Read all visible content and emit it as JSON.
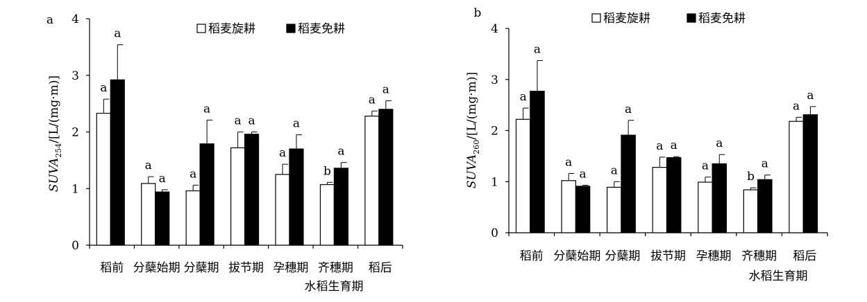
{
  "legend": {
    "white": "稻麦旋耕",
    "black": "稻麦免耕"
  },
  "chart_data": [
    {
      "type": "bar",
      "panel_label": "a",
      "ylabel_main": "SUVA",
      "ylabel_sub": "254",
      "ylabel_unit": "/[L/(mg·m)]",
      "xlabel": "水稻生育期",
      "categories": [
        "稻前",
        "分蘖始期",
        "分蘖期",
        "拔节期",
        "孕穗期",
        "齐穗期",
        "稻后"
      ],
      "ylim": [
        0,
        4
      ],
      "yticks": [
        "0",
        "1",
        "2",
        "3",
        "4"
      ],
      "legend_position": "top-right",
      "series": [
        {
          "name": "稻麦旋耕",
          "values": [
            2.33,
            1.09,
            0.96,
            1.72,
            1.25,
            1.07,
            2.28
          ],
          "errors": [
            0.25,
            0.12,
            0.1,
            0.28,
            0.18,
            0.04,
            0.09
          ],
          "letters": [
            "a",
            "a",
            "a",
            "a",
            "a",
            "b",
            "a"
          ]
        },
        {
          "name": "稻麦免耕",
          "values": [
            2.92,
            0.94,
            1.79,
            1.96,
            1.7,
            1.36,
            2.4
          ],
          "errors": [
            0.62,
            0.04,
            0.42,
            0.04,
            0.25,
            0.1,
            0.15
          ],
          "letters": [
            "a",
            "a",
            "a",
            "a",
            "a",
            "a",
            "a"
          ]
        }
      ]
    },
    {
      "type": "bar",
      "panel_label": "b",
      "ylabel_main": "SUVA",
      "ylabel_sub": "260",
      "ylabel_unit": "/[L/(mg·m)]",
      "xlabel": "水稻生育期",
      "categories": [
        "稻前",
        "分蘖始期",
        "分蘖期",
        "拔节期",
        "孕穗期",
        "齐穗期",
        "稻后"
      ],
      "ylim": [
        0,
        4
      ],
      "yticks": [
        "0",
        "1",
        "2",
        "3",
        "4"
      ],
      "legend_position": "top-right",
      "series": [
        {
          "name": "稻麦旋耕",
          "values": [
            2.22,
            1.02,
            0.89,
            1.28,
            0.99,
            0.84,
            2.18
          ],
          "errors": [
            0.22,
            0.14,
            0.11,
            0.2,
            0.1,
            0.04,
            0.08
          ],
          "letters": [
            "a",
            "a",
            "a",
            "a",
            "a",
            "b",
            "a"
          ]
        },
        {
          "name": "稻麦免耕",
          "values": [
            2.77,
            0.91,
            1.91,
            1.47,
            1.35,
            1.04,
            2.31
          ],
          "errors": [
            0.6,
            0.02,
            0.29,
            0.02,
            0.18,
            0.09,
            0.16
          ],
          "letters": [
            "a",
            "a",
            "a",
            "a",
            "a",
            "a",
            "a"
          ]
        }
      ]
    }
  ]
}
